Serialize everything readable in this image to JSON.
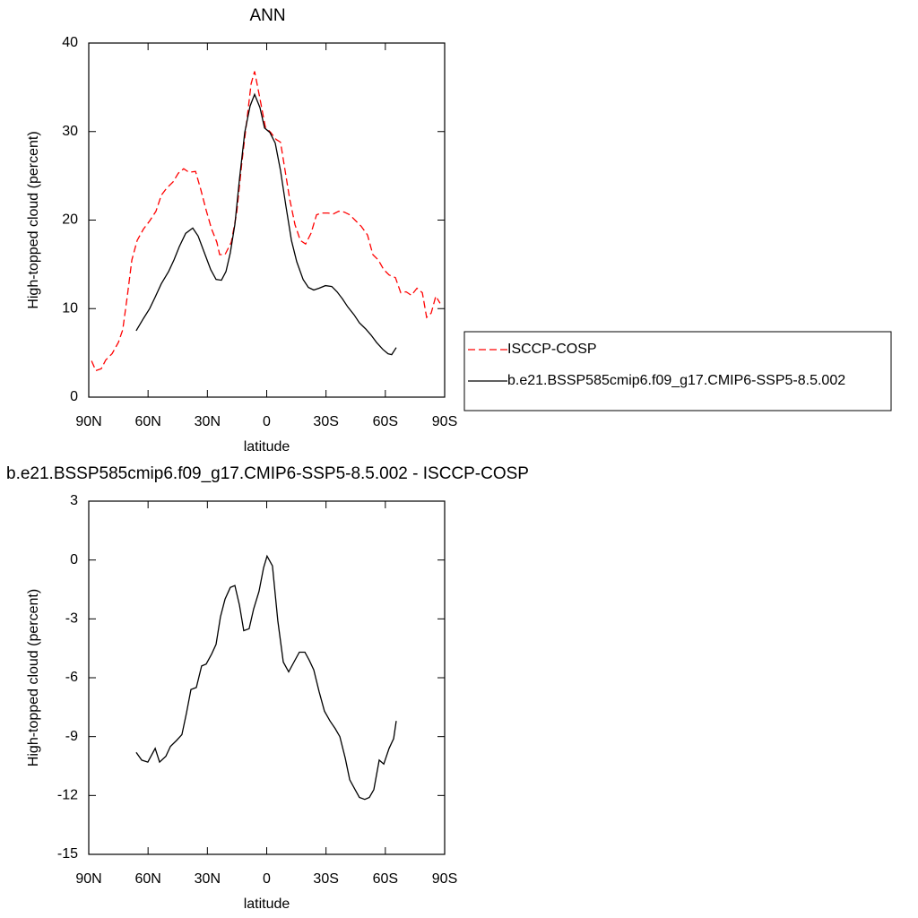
{
  "chart_data": [
    {
      "type": "line",
      "title": "ANN",
      "xlabel": "latitude",
      "ylabel": "High-topped cloud (percent)",
      "xlim": [
        90,
        -90
      ],
      "xticks": [
        {
          "value": 90,
          "label": "90N"
        },
        {
          "value": 60,
          "label": "60N"
        },
        {
          "value": 30,
          "label": "30N"
        },
        0,
        {
          "value": -30,
          "label": "30S"
        },
        {
          "value": -60,
          "label": "60S"
        },
        {
          "value": -90,
          "label": "90S"
        }
      ],
      "ylim": [
        0,
        40
      ],
      "yticks": [
        0,
        10,
        20,
        30,
        40
      ],
      "legend": "right",
      "series": [
        {
          "name": "ISCCP-COSP",
          "color": "#ff0000",
          "dash": true,
          "x": [
            88.6,
            86.4,
            83.7,
            81.4,
            78.2,
            75,
            72.8,
            70.5,
            68.2,
            65.5,
            62.3,
            59.2,
            56,
            53.3,
            50.6,
            47.4,
            44.7,
            42,
            39.3,
            36,
            33.3,
            30.6,
            27.9,
            25.2,
            23.8,
            21.1,
            17.9,
            15.2,
            12.5,
            9.7,
            7.9,
            6.1,
            3.4,
            0.7,
            -2,
            -4.8,
            -7,
            -9.3,
            -11.6,
            -14.3,
            -17,
            -19.7,
            -22.4,
            -25.2,
            -27.9,
            -31,
            -33.8,
            -36.5,
            -39.2,
            -42,
            -45.1,
            -47.8,
            -51,
            -53.7,
            -56.4,
            -59.2,
            -61.9,
            -65.1,
            -67.8,
            -70.5,
            -73.2,
            -76,
            -78.7,
            -80.9,
            -83.2,
            -85.5,
            -87.7
          ],
          "values": [
            4.1,
            3.0,
            3.2,
            4.2,
            4.9,
            6.2,
            7.6,
            11.4,
            15.5,
            17.7,
            19.0,
            19.9,
            21.0,
            22.8,
            23.6,
            24.3,
            25.3,
            25.8,
            25.4,
            25.5,
            23.4,
            21.1,
            19.0,
            17.5,
            16.1,
            16.1,
            17.5,
            20.8,
            26.6,
            31.9,
            35.4,
            36.8,
            33.7,
            30.5,
            29.9,
            29.1,
            28.8,
            25.6,
            22.4,
            19.5,
            17.7,
            17.3,
            18.5,
            20.6,
            20.8,
            20.8,
            20.7,
            21.0,
            20.9,
            20.6,
            19.9,
            19.3,
            18.3,
            16.1,
            15.5,
            14.4,
            13.8,
            13.5,
            11.8,
            11.9,
            11.5,
            12.3,
            11.8,
            9.0,
            9.5,
            11.4,
            10.6
          ]
        },
        {
          "name": "b.e21.BSSP585cmip6.f09_g17.CMIP6-SSP5-8.5.002",
          "color": "#000000",
          "dash": false,
          "x": [
            66,
            62.3,
            59.2,
            56.4,
            53.3,
            49.6,
            46.9,
            44.2,
            41,
            37.4,
            34.7,
            31.5,
            28.3,
            25.6,
            22.9,
            20.6,
            18.4,
            16.1,
            13.8,
            11.1,
            8.4,
            6.1,
            3.4,
            1.1,
            -1.6,
            -4.3,
            -7,
            -9.7,
            -12.5,
            -15.2,
            -18.4,
            -21.1,
            -23.8,
            -26.5,
            -29.7,
            -32.9,
            -35.6,
            -38.3,
            -41,
            -44.2,
            -46.9,
            -50.1,
            -52.8,
            -55.5,
            -58.7,
            -61.4,
            -63.2,
            -65.5
          ],
          "values": [
            7.5,
            8.9,
            10.0,
            11.3,
            12.8,
            14.2,
            15.5,
            17.0,
            18.5,
            19.1,
            18.2,
            16.3,
            14.4,
            13.3,
            13.2,
            14.2,
            16.3,
            19.5,
            24.6,
            29.9,
            32.9,
            34.2,
            32.7,
            30.4,
            29.9,
            28.7,
            25.6,
            21.6,
            17.7,
            15.3,
            13.3,
            12.4,
            12.1,
            12.3,
            12.6,
            12.5,
            11.9,
            11.1,
            10.2,
            9.3,
            8.4,
            7.7,
            7.0,
            6.2,
            5.4,
            4.9,
            4.8,
            5.6
          ]
        }
      ]
    },
    {
      "type": "line",
      "title": "b.e21.BSSP585cmip6.f09_g17.CMIP6-SSP5-8.5.002 - ISCCP-COSP",
      "xlabel": "latitude",
      "ylabel": "High-topped cloud (percent)",
      "xlim": [
        90,
        -90
      ],
      "xticks": [
        {
          "value": 90,
          "label": "90N"
        },
        {
          "value": 60,
          "label": "60N"
        },
        {
          "value": 30,
          "label": "30N"
        },
        0,
        {
          "value": -30,
          "label": "30S"
        },
        {
          "value": -60,
          "label": "60S"
        },
        {
          "value": -90,
          "label": "90S"
        }
      ],
      "ylim": [
        -15,
        3
      ],
      "yticks": [
        -15,
        -12,
        -9,
        -6,
        -3,
        0,
        3
      ],
      "series": [
        {
          "color": "#000000",
          "dash": false,
          "x": [
            66,
            63.2,
            60.1,
            56.4,
            54.2,
            51,
            48.7,
            45.6,
            42.9,
            40.6,
            38.3,
            35.6,
            32.9,
            30.6,
            27.9,
            25.6,
            23.4,
            21.1,
            18.4,
            16.1,
            13.8,
            11.6,
            8.9,
            6.6,
            3.9,
            1.6,
            -0.2,
            -2.9,
            -5.6,
            -8.4,
            -11.1,
            -13.8,
            -16.5,
            -19.3,
            -21.5,
            -23.8,
            -26.5,
            -29.2,
            -32,
            -34.7,
            -37,
            -39.7,
            -42,
            -44.7,
            -46.9,
            -49.6,
            -51.9,
            -54.2,
            -56.9,
            -59.2,
            -61.9,
            -64.2,
            -65.5
          ],
          "values": [
            -9.8,
            -10.2,
            -10.3,
            -9.6,
            -10.3,
            -10.0,
            -9.5,
            -9.2,
            -8.9,
            -7.8,
            -6.6,
            -6.5,
            -5.4,
            -5.3,
            -4.8,
            -4.3,
            -2.9,
            -2.0,
            -1.4,
            -1.3,
            -2.3,
            -3.6,
            -3.5,
            -2.5,
            -1.6,
            -0.4,
            0.2,
            -0.3,
            -3.1,
            -5.2,
            -5.7,
            -5.2,
            -4.7,
            -4.7,
            -5.1,
            -5.6,
            -6.7,
            -7.7,
            -8.2,
            -8.6,
            -9.0,
            -10.1,
            -11.2,
            -11.7,
            -12.1,
            -12.2,
            -12.1,
            -11.7,
            -10.2,
            -10.4,
            -9.6,
            -9.1,
            -8.2
          ]
        }
      ]
    }
  ]
}
